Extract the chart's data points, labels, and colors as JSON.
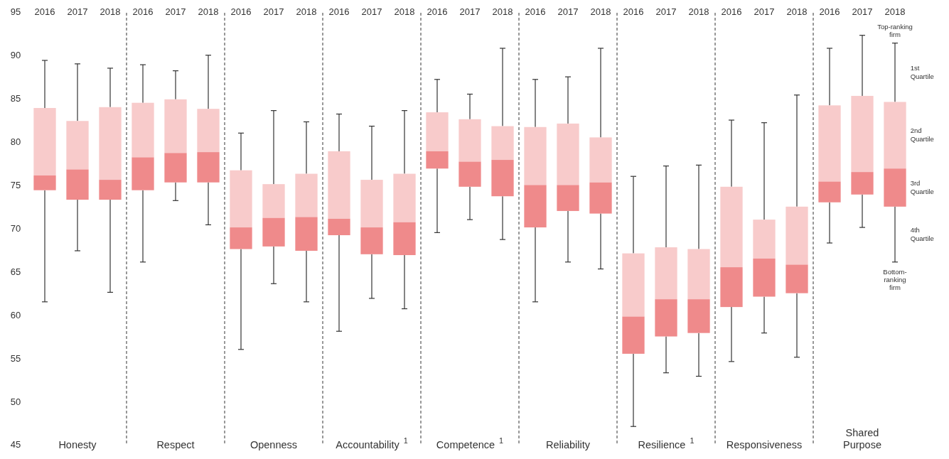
{
  "chart_data": [
    {
      "type": "box",
      "xlabel": "Honesty",
      "categories": [
        "2016",
        "2017",
        "2018"
      ],
      "colors": [
        [
          "#f8cbcb",
          "#ef8a8b"
        ],
        [
          "#f8cbcb",
          "#ef8a8b"
        ],
        [
          "#f8cbcb",
          "#ef8a8b"
        ]
      ],
      "ylim": [
        45,
        95
      ],
      "yticks": [
        45,
        50,
        55,
        60,
        65,
        70,
        75,
        80,
        85,
        90,
        95
      ],
      "boxes": [
        {
          "low": 61.6,
          "q1": 74.5,
          "median": 76.2,
          "q3": 84.0,
          "high": 89.5
        },
        {
          "low": 67.5,
          "q1": 73.4,
          "median": 76.9,
          "q3": 82.5,
          "high": 89.1
        },
        {
          "low": 62.7,
          "q1": 73.4,
          "median": 75.7,
          "q3": 84.1,
          "high": 88.6
        }
      ]
    },
    {
      "type": "box",
      "xlabel": "Respect",
      "categories": [
        "2016",
        "2017",
        "2018"
      ],
      "colors": [
        [
          "#f8cbcb",
          "#ef8a8b"
        ],
        [
          "#f8cbcb",
          "#ef8a8b"
        ],
        [
          "#f8cbcb",
          "#ef8a8b"
        ]
      ],
      "ylim": [
        45,
        95
      ],
      "tick_labels": "x",
      "boxes": [
        {
          "low": 66.2,
          "q1": 74.5,
          "median": 78.3,
          "q3": 84.6,
          "high": 89.0
        },
        {
          "low": 73.3,
          "q1": 75.4,
          "median": 78.8,
          "q3": 85.0,
          "high": 88.3
        },
        {
          "low": 70.5,
          "q1": 75.4,
          "median": 78.9,
          "q3": 83.9,
          "high": 90.1
        }
      ]
    },
    {
      "type": "box",
      "xlabel": "Openness",
      "categories": [
        "2016",
        "2017",
        "2018"
      ],
      "colors": [
        [
          "#f8cbcb",
          "#ef8a8b"
        ],
        [
          "#f8cbcb",
          "#ef8a8b"
        ],
        [
          "#f8cbcb",
          "#ef8a8b"
        ]
      ],
      "ylim": [
        45,
        95
      ],
      "tick_labels": "x",
      "boxes": [
        {
          "low": 56.1,
          "q1": 67.7,
          "median": 70.2,
          "q3": 76.8,
          "high": 81.1
        },
        {
          "low": 63.7,
          "q1": 68.0,
          "median": 71.3,
          "q3": 75.2,
          "high": 83.7
        },
        {
          "low": 61.6,
          "q1": 67.5,
          "median": 71.4,
          "q3": 76.4,
          "high": 82.4
        }
      ]
    },
    {
      "type": "box",
      "xlabel": "Accountability$^{1}$",
      "categories": [
        "2016",
        "2017",
        "2018"
      ],
      "colors": [
        [
          "#f8cbcb",
          "#ef8a8b"
        ],
        [
          "#f8cbcb",
          "#ef8a8b"
        ],
        [
          "#f8cbcb",
          "#ef8a8b"
        ]
      ],
      "ylim": [
        45,
        95
      ],
      "tick_labels": "x",
      "boxes": [
        {
          "low": 58.2,
          "q1": 69.3,
          "median": 71.2,
          "q3": 79.0,
          "high": 83.3
        },
        {
          "low": 62.0,
          "q1": 67.1,
          "median": 70.2,
          "q3": 75.7,
          "high": 81.9
        },
        {
          "low": 60.8,
          "q1": 67.0,
          "median": 70.8,
          "q3": 76.4,
          "high": 83.7
        }
      ]
    },
    {
      "type": "box",
      "xlabel": "Competence$^{1}$",
      "categories": [
        "2016",
        "2017",
        "2018"
      ],
      "colors": [
        [
          "#f8cbcb",
          "#ef8a8b"
        ],
        [
          "#f8cbcb",
          "#ef8a8b"
        ],
        [
          "#f8cbcb",
          "#ef8a8b"
        ]
      ],
      "ylim": [
        45,
        95
      ],
      "tick_labels": "x",
      "boxes": [
        {
          "low": 69.6,
          "q1": 77.0,
          "median": 79.0,
          "q3": 83.5,
          "high": 87.3
        },
        {
          "low": 71.1,
          "q1": 74.9,
          "median": 77.8,
          "q3": 82.7,
          "high": 85.6
        },
        {
          "low": 68.8,
          "q1": 73.8,
          "median": 78.0,
          "q3": 81.9,
          "high": 90.9
        }
      ]
    },
    {
      "type": "box",
      "xlabel": "Reliability",
      "categories": [
        "2016",
        "2017",
        "2018"
      ],
      "colors": [
        [
          "#f8cbcb",
          "#ef8a8b"
        ],
        [
          "#f8cbcb",
          "#ef8a8b"
        ],
        [
          "#f8cbcb",
          "#ef8a8b"
        ]
      ],
      "ylim": [
        45,
        95
      ],
      "tick_labels": "x",
      "boxes": [
        {
          "low": 61.6,
          "q1": 70.2,
          "median": 75.1,
          "q3": 81.8,
          "high": 87.3
        },
        {
          "low": 66.2,
          "q1": 72.1,
          "median": 75.1,
          "q3": 82.2,
          "high": 87.6
        },
        {
          "low": 65.4,
          "q1": 71.8,
          "median": 75.4,
          "q3": 80.6,
          "high": 90.9
        }
      ]
    },
    {
      "type": "box",
      "xlabel": "Resilience$^{1}$",
      "categories": [
        "2016",
        "2017",
        "2018"
      ],
      "colors": [
        [
          "#f8cbcb",
          "#ef8a8b"
        ],
        [
          "#f8cbcb",
          "#ef8a8b"
        ],
        [
          "#f8cbcb",
          "#ef8a8b"
        ]
      ],
      "ylim": [
        45,
        95
      ],
      "tick_labels": "x",
      "boxes": [
        {
          "low": 47.2,
          "q1": 55.6,
          "median": 59.9,
          "q3": 67.2,
          "high": 76.1
        },
        {
          "low": 53.4,
          "q1": 57.6,
          "median": 61.9,
          "q3": 67.9,
          "high": 77.3
        },
        {
          "low": 53.0,
          "q1": 58.0,
          "median": 61.9,
          "q3": 67.7,
          "high": 77.4
        }
      ]
    },
    {
      "type": "box",
      "xlabel": "Responsiveness",
      "categories": [
        "2016",
        "2017",
        "2018"
      ],
      "colors": [
        [
          "#f8cbcb",
          "#ef8a8b"
        ],
        [
          "#f8cbcb",
          "#ef8a8b"
        ],
        [
          "#f8cbcb",
          "#ef8a8b"
        ]
      ],
      "ylim": [
        45,
        95
      ],
      "tick_labels": "x",
      "boxes": [
        {
          "low": 54.7,
          "q1": 61.0,
          "median": 65.6,
          "q3": 74.9,
          "high": 82.6
        },
        {
          "low": 58.0,
          "q1": 62.2,
          "median": 66.6,
          "q3": 71.1,
          "high": 82.3
        },
        {
          "low": 55.2,
          "q1": 62.6,
          "median": 65.9,
          "q3": 72.6,
          "high": 85.5
        }
      ]
    },
    {
      "type": "box",
      "xlabel": "Shared\nPurpose",
      "categories": [
        "2016",
        "2017",
        "2018"
      ],
      "colors": [
        [
          "#f8cbcb",
          "#ef8a8b"
        ],
        [
          "#f8cbcb",
          "#ef8a8b"
        ],
        [
          "#f8cbcb",
          "#ef8a8b"
        ]
      ],
      "ylim": [
        45,
        95
      ],
      "tick_labels": "x",
      "boxes": [
        {
          "low": 68.4,
          "q1": 73.1,
          "median": 75.5,
          "q3": 84.3,
          "high": 90.9
        },
        {
          "low": 70.2,
          "q1": 74.0,
          "median": 76.6,
          "q3": 85.4,
          "high": 92.4
        },
        {
          "low": 66.2,
          "q1": 72.6,
          "median": 77.0,
          "q3": 84.7,
          "high": 91.5
        }
      ],
      "annotations": [
        "Top-ranking\nfirm",
        "1st\nQuartile",
        "2nd\nQuartile",
        "3rd\nQuartile",
        "4th\nQuartile",
        "Bottom-\nranking\nfirm"
      ]
    }
  ]
}
